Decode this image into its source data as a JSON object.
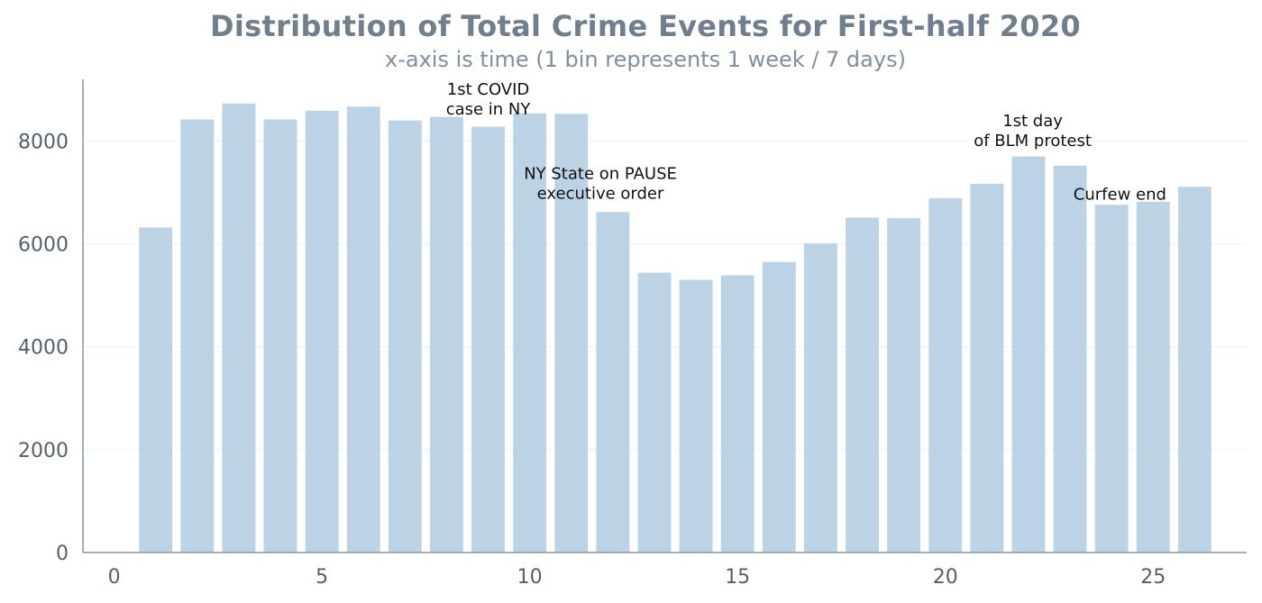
{
  "chart_data": {
    "type": "bar",
    "title": "Distribution of Total Crime Events for First-half 2020",
    "subtitle": "x-axis is time (1 bin represents 1 week / 7 days)",
    "xlabel": "",
    "ylabel": "",
    "x": [
      1,
      2,
      3,
      4,
      5,
      6,
      7,
      8,
      9,
      10,
      11,
      12,
      13,
      14,
      15,
      16,
      17,
      18,
      19,
      20,
      21,
      22,
      23,
      24,
      25,
      26
    ],
    "values": [
      6320,
      8420,
      8730,
      8420,
      8590,
      8670,
      8400,
      8470,
      8280,
      8540,
      8530,
      6620,
      5440,
      5300,
      5390,
      5650,
      6010,
      6510,
      6500,
      6890,
      7170,
      7700,
      7520,
      6760,
      6820,
      7110
    ],
    "xlim": [
      -0.75,
      27.25
    ],
    "ylim": [
      0,
      9200
    ],
    "xticks": [
      0,
      5,
      10,
      15,
      20,
      25
    ],
    "yticks": [
      0,
      2000,
      4000,
      6000,
      8000
    ],
    "grid": "horizontal",
    "colors": {
      "bar": "#bcd3e5",
      "axis": "#8795a3",
      "grid": "#eef6fa",
      "title": "#6f7f8f"
    },
    "annotations": [
      {
        "x": 9,
        "y": 8520,
        "lines": [
          "1st COVID",
          "case in NY"
        ]
      },
      {
        "x": 11.7,
        "y": 6880,
        "lines": [
          "NY State on PAUSE",
          "executive order"
        ]
      },
      {
        "x": 22.1,
        "y": 7900,
        "lines": [
          "1st day",
          "of BLM protest"
        ]
      },
      {
        "x": 24.2,
        "y": 6860,
        "lines": [
          "Curfew end"
        ]
      }
    ]
  }
}
